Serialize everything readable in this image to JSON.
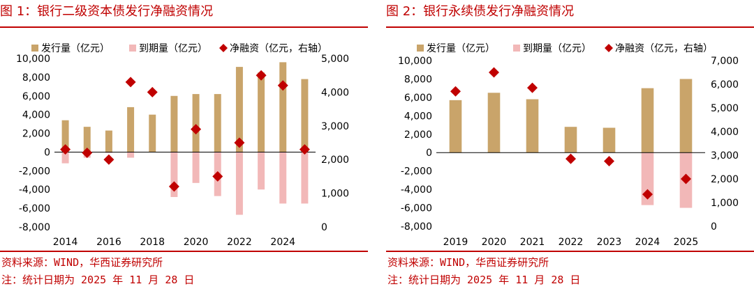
{
  "chart_data": [
    {
      "type": "bar",
      "title": "图 1：银行二级资本债发行净融资情况",
      "categories": [
        "2014",
        "2015",
        "2016",
        "2017",
        "2018",
        "2019",
        "2020",
        "2021",
        "2022",
        "2023",
        "2024",
        "2025"
      ],
      "x_tick_labels": [
        "2014",
        "2016",
        "2018",
        "2020",
        "2022",
        "2024"
      ],
      "series": [
        {
          "name": "发行量（亿元）",
          "kind": "bar",
          "axis": "left",
          "color": "#c9a46a",
          "values": [
            3400,
            2700,
            2300,
            4800,
            4000,
            6000,
            6200,
            6200,
            9100,
            8500,
            9600,
            7800
          ]
        },
        {
          "name": "到期量（亿元）",
          "kind": "bar",
          "axis": "left",
          "color": "#f2b8b8",
          "values": [
            -1200,
            -600,
            -100,
            -600,
            0,
            -4800,
            -3300,
            -4700,
            -6700,
            -4000,
            -5500,
            -5500
          ]
        },
        {
          "name": "净融资（亿元，右轴）",
          "kind": "marker",
          "axis": "right",
          "color": "#c00000",
          "values": [
            2300,
            2200,
            2000,
            4300,
            4000,
            1200,
            2900,
            1500,
            2500,
            4500,
            4200,
            2300
          ]
        }
      ],
      "ylim": [
        -8000,
        10000
      ],
      "yticks": [
        -8000,
        -6000,
        -4000,
        -2000,
        0,
        2000,
        4000,
        6000,
        8000,
        10000
      ],
      "ytick_labels": [
        "-8,000",
        "-6,000",
        "-4,000",
        "-2,000",
        "0",
        "2,000",
        "4,000",
        "6,000",
        "8,000",
        "10,000"
      ],
      "y2lim": [
        0,
        5000
      ],
      "y2ticks": [
        0,
        1000,
        2000,
        3000,
        4000,
        5000
      ],
      "y2tick_labels": [
        "0",
        "1,000",
        "2,000",
        "3,000",
        "4,000",
        "5,000"
      ],
      "legend": "top"
    },
    {
      "type": "bar",
      "title": "图 2：银行永续债发行净融资情况",
      "categories": [
        "2019",
        "2020",
        "2021",
        "2022",
        "2023",
        "2024",
        "2025"
      ],
      "x_tick_labels": [
        "2019",
        "2020",
        "2021",
        "2022",
        "2023",
        "2024",
        "2025"
      ],
      "series": [
        {
          "name": "发行量（亿元）",
          "kind": "bar",
          "axis": "left",
          "color": "#c9a46a",
          "values": [
            5700,
            6500,
            5800,
            2800,
            2700,
            7000,
            8000
          ]
        },
        {
          "name": "到期量（亿元）",
          "kind": "bar",
          "axis": "left",
          "color": "#f2b8b8",
          "values": [
            0,
            0,
            0,
            0,
            0,
            -5700,
            -6000
          ]
        },
        {
          "name": "净融资（亿元，右轴）",
          "kind": "marker",
          "axis": "right",
          "color": "#c00000",
          "values": [
            5700,
            6500,
            5850,
            2850,
            2750,
            1350,
            2000
          ]
        }
      ],
      "ylim": [
        -8000,
        10000
      ],
      "yticks": [
        -8000,
        -6000,
        -4000,
        -2000,
        0,
        2000,
        4000,
        6000,
        8000,
        10000
      ],
      "ytick_labels": [
        "-8,000",
        "-6,000",
        "-4,000",
        "-2,000",
        "0",
        "2,000",
        "4,000",
        "6,000",
        "8,000",
        "10,000"
      ],
      "y2lim": [
        0,
        7000
      ],
      "y2ticks": [
        0,
        1000,
        2000,
        3000,
        4000,
        5000,
        6000,
        7000
      ],
      "y2tick_labels": [
        "0",
        "1,000",
        "2,000",
        "3,000",
        "4,000",
        "5,000",
        "6,000",
        "7,000"
      ],
      "legend": "top"
    }
  ],
  "footer": {
    "source": "资料来源：WIND，华西证券研究所",
    "note": "注：统计日期为 2025 年 11 月 28 日"
  }
}
